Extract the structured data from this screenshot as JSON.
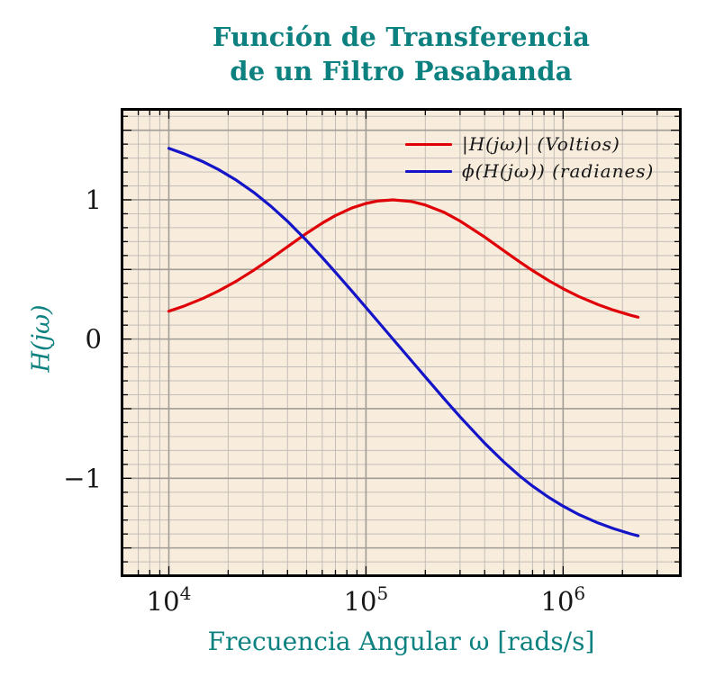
{
  "title": {
    "line1": "Función de Transferencia",
    "line2": "de un Filtro Pasabanda"
  },
  "colors": {
    "teal": "#0d8080",
    "magnitude_red": "#e00008",
    "phase_blue": "#1414c8",
    "plot_background": "#f8ecdc",
    "grid_minor": "#c3bfb8",
    "grid_major": "#a19d96",
    "frame": "#000000",
    "tick_text": "#161616"
  },
  "legend": {
    "position": "upper-right-inside, no frame"
  },
  "chart_data": {
    "type": "line",
    "title": "Función de Transferencia de un Filtro Pasabanda",
    "xlabel": "Frecuencia Angular ω [rads/s]",
    "ylabel": "H(jω)",
    "x_scale": "log",
    "xlim": [
      5880,
      3870000
    ],
    "ylim": [
      -1.69,
      1.64
    ],
    "grid": "major and minor gridlines, graph-paper style",
    "legend_position": "upper right inside axes",
    "x_ticks": [
      {
        "value": 10000,
        "base": "10",
        "exp": "4"
      },
      {
        "value": 100000,
        "base": "10",
        "exp": "5"
      },
      {
        "value": 1000000,
        "base": "10",
        "exp": "6"
      }
    ],
    "y_ticks": [
      {
        "value": 1,
        "label": "1"
      },
      {
        "value": 0,
        "label": "0"
      },
      {
        "value": -1,
        "label": "−1"
      }
    ],
    "x": [
      10000,
      12000,
      15000,
      18000,
      22000,
      27000,
      33000,
      40000,
      50000,
      60000,
      70000,
      85000,
      100000,
      115000,
      137000,
      170000,
      200000,
      250000,
      300000,
      400000,
      500000,
      600000,
      700000,
      850000,
      1000000,
      1200000,
      1500000,
      1800000,
      2200000,
      2400000
    ],
    "series": [
      {
        "name": "|H(jω)| (Voltios)",
        "color": "#e00008",
        "values": [
          0.2,
          0.238,
          0.294,
          0.348,
          0.416,
          0.495,
          0.579,
          0.663,
          0.76,
          0.833,
          0.887,
          0.942,
          0.974,
          0.992,
          1.0,
          0.988,
          0.963,
          0.909,
          0.848,
          0.733,
          0.635,
          0.556,
          0.492,
          0.418,
          0.362,
          0.306,
          0.248,
          0.208,
          0.171,
          0.157
        ]
      },
      {
        "name": "ϕ(H(jω)) (radianes)",
        "color": "#1414c8",
        "values": [
          1.37,
          1.33,
          1.272,
          1.215,
          1.141,
          1.053,
          0.953,
          0.846,
          0.707,
          0.586,
          0.48,
          0.343,
          0.227,
          0.126,
          0.0,
          -0.155,
          -0.272,
          -0.431,
          -0.558,
          -0.748,
          -0.882,
          -0.981,
          -1.056,
          -1.139,
          -1.2,
          -1.26,
          -1.32,
          -1.361,
          -1.399,
          -1.413
        ]
      }
    ]
  }
}
